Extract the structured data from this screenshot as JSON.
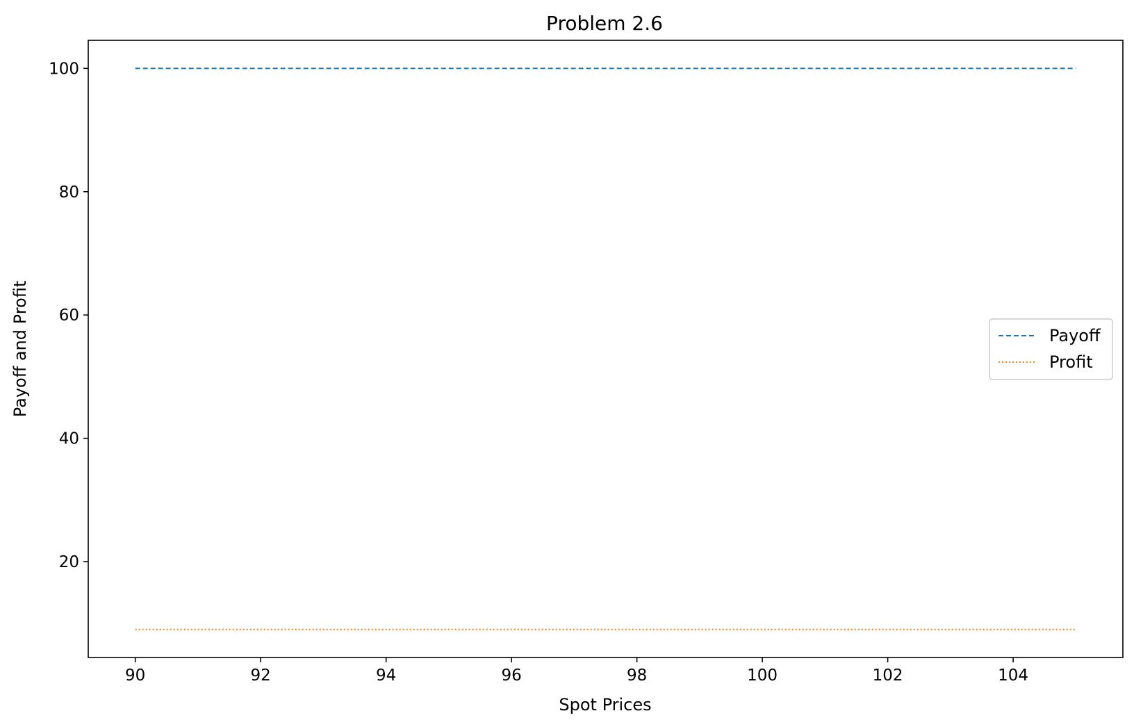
{
  "chart_data": {
    "type": "line",
    "title": "Problem 2.6",
    "xlabel": "Spot Prices",
    "ylabel": "Payoff and Profit",
    "x": [
      90,
      91,
      92,
      93,
      94,
      95,
      96,
      97,
      98,
      99,
      100,
      101,
      102,
      103,
      104,
      105
    ],
    "series": [
      {
        "name": "Payoff",
        "values": [
          100,
          100,
          100,
          100,
          100,
          100,
          100,
          100,
          100,
          100,
          100,
          100,
          100,
          100,
          100,
          100
        ],
        "color": "#1f77b4",
        "linestyle": "dashed"
      },
      {
        "name": "Profit",
        "values": [
          9.0,
          9.0,
          9.0,
          9.0,
          9.0,
          9.0,
          9.0,
          9.0,
          9.0,
          9.0,
          9.0,
          9.0,
          9.0,
          9.0,
          9.0,
          9.0
        ],
        "color": "#ff7f0e",
        "linestyle": "dotted"
      }
    ],
    "xlim": [
      89.25,
      105.75
    ],
    "ylim": [
      4.45,
      104.55
    ],
    "xticks": [
      90,
      92,
      94,
      96,
      98,
      100,
      102,
      104
    ],
    "yticks": [
      20,
      40,
      60,
      80,
      100
    ],
    "grid": false,
    "legend_position": "center-right"
  }
}
